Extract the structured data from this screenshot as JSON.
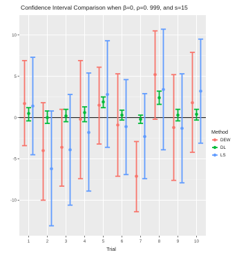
{
  "chart_data": {
    "type": "errorbar",
    "title": "Confidence Interval Comparison when β=0, ρ=0. 999, and s=15",
    "xlabel": "Trial",
    "ylabel": "",
    "categories": [
      "1",
      "2",
      "3",
      "4",
      "5",
      "6",
      "7",
      "8",
      "9",
      "10"
    ],
    "ylim": [
      -14.3,
      12.4
    ],
    "yticks": [
      -10,
      -5,
      0,
      5,
      10
    ],
    "reference_line_y": 0,
    "grid": true,
    "legend": {
      "title": "Method",
      "placement": "right"
    },
    "series": [
      {
        "name": "DEW",
        "color": "#F8766D",
        "center": [
          1.7,
          -4.0,
          -3.6,
          -0.2,
          1.5,
          -0.9,
          -7.1,
          5.2,
          -1.2,
          1.8
        ],
        "lower": [
          -3.4,
          -10.0,
          -8.3,
          -7.4,
          -3.2,
          -7.1,
          -11.4,
          -0.2,
          -7.6,
          -4.2
        ],
        "upper": [
          6.9,
          1.8,
          1.0,
          6.9,
          6.1,
          5.3,
          -2.9,
          10.5,
          5.2,
          7.9
        ]
      },
      {
        "name": "DL",
        "color": "#00BA38",
        "center": [
          0.5,
          0.0,
          0.2,
          0.6,
          1.9,
          0.3,
          -0.2,
          2.4,
          0.3,
          0.4
        ],
        "lower": [
          -0.4,
          -0.7,
          -0.5,
          -0.5,
          1.2,
          -0.3,
          -0.7,
          1.6,
          -0.4,
          -0.3
        ],
        "upper": [
          1.2,
          0.8,
          1.0,
          1.3,
          2.5,
          0.9,
          0.3,
          3.2,
          1.0,
          1.0
        ]
      },
      {
        "name": "LS",
        "color": "#619CFF",
        "center": [
          1.4,
          -6.2,
          -3.9,
          -1.8,
          2.8,
          -1.1,
          -2.3,
          3.4,
          -1.3,
          3.2
        ],
        "lower": [
          -4.5,
          -13.1,
          -10.6,
          -8.9,
          -3.6,
          -6.9,
          -7.4,
          -3.9,
          -7.9,
          -3.1
        ],
        "upper": [
          7.3,
          0.8,
          2.8,
          5.4,
          9.3,
          4.6,
          2.9,
          10.7,
          5.3,
          9.5
        ]
      }
    ]
  }
}
